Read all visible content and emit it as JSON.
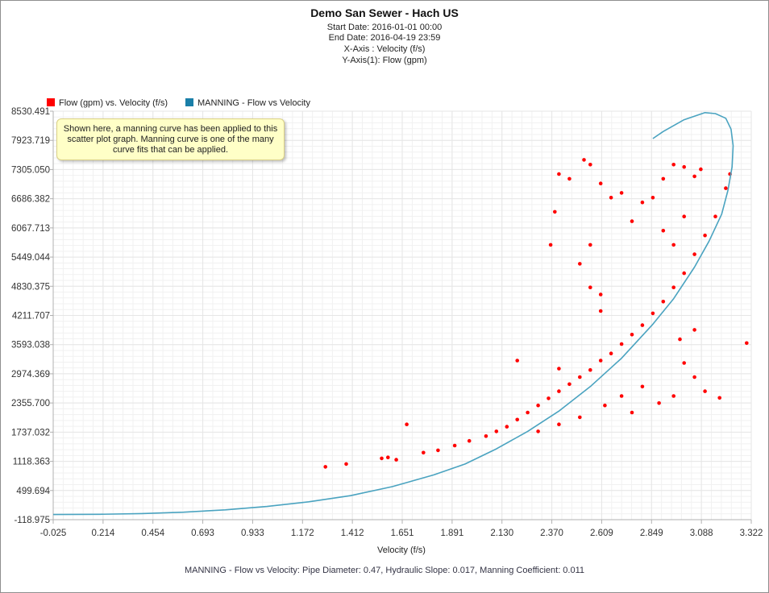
{
  "header": {
    "title": "Demo San Sewer - Hach US",
    "start_date": "Start Date: 2016-01-01 00:00",
    "end_date": "End Date: 2016-04-19 23:59",
    "x_axis_info": "X-Axis : Velocity (f/s)",
    "y_axis_info": "Y-Axis(1): Flow (gpm)"
  },
  "annotation": "Shown here, a manning curve has been applied to this scatter plot graph. Manning curve is one of the many curve fits that can be applied.",
  "footer": "MANNING - Flow vs Velocity:   Pipe Diameter: 0.47, Hydraulic Slope: 0.017, Manning Coefficient: 0.011",
  "colors": {
    "scatter": "#ff0000",
    "curve": "#4aa3c0",
    "legend_curve_swatch": "#1a7fa8",
    "grid": "#e6e6e6",
    "axis": "#b0b0b0"
  },
  "chart_data": {
    "type": "scatter",
    "xlabel": "Velocity (f/s)",
    "ylabel": "",
    "xlim": [
      -0.025,
      3.322
    ],
    "ylim": [
      -118.975,
      8530.491
    ],
    "x_ticks": [
      "-0.025",
      "0.214",
      "0.454",
      "0.693",
      "0.933",
      "1.172",
      "1.412",
      "1.651",
      "1.891",
      "2.130",
      "2.370",
      "2.609",
      "2.849",
      "3.088",
      "3.322"
    ],
    "y_ticks": [
      "8530.491",
      "7923.719",
      "7305.050",
      "6686.382",
      "6067.713",
      "5449.044",
      "4830.375",
      "4211.707",
      "3593.038",
      "2974.369",
      "2355.700",
      "1737.032",
      "1118.363",
      "499.694",
      "-118.975"
    ],
    "grid": true,
    "legend_position": "top-left",
    "series": [
      {
        "name": "Flow (gpm) vs. Velocity (f/s)",
        "kind": "scatter",
        "points": [
          [
            1.28,
            1000
          ],
          [
            1.38,
            1060
          ],
          [
            1.55,
            1180
          ],
          [
            1.58,
            1200
          ],
          [
            1.62,
            1150
          ],
          [
            1.67,
            1900
          ],
          [
            1.75,
            1300
          ],
          [
            1.82,
            1350
          ],
          [
            1.9,
            1450
          ],
          [
            1.97,
            1550
          ],
          [
            2.05,
            1650
          ],
          [
            2.1,
            1750
          ],
          [
            2.15,
            1850
          ],
          [
            2.2,
            2000
          ],
          [
            2.25,
            2150
          ],
          [
            2.3,
            2300
          ],
          [
            2.35,
            2450
          ],
          [
            2.4,
            2600
          ],
          [
            2.45,
            2750
          ],
          [
            2.5,
            2900
          ],
          [
            2.55,
            3050
          ],
          [
            2.6,
            3250
          ],
          [
            2.65,
            3400
          ],
          [
            2.7,
            3600
          ],
          [
            2.75,
            3800
          ],
          [
            2.8,
            4000
          ],
          [
            2.85,
            4250
          ],
          [
            2.9,
            4500
          ],
          [
            2.95,
            4800
          ],
          [
            3.0,
            5100
          ],
          [
            3.05,
            5500
          ],
          [
            3.1,
            5900
          ],
          [
            3.15,
            6300
          ],
          [
            3.2,
            6900
          ],
          [
            3.22,
            7200
          ],
          [
            3.3,
            3620
          ],
          [
            3.17,
            2460
          ],
          [
            3.1,
            2600
          ],
          [
            3.05,
            2900
          ],
          [
            2.95,
            2500
          ],
          [
            2.88,
            2350
          ],
          [
            2.75,
            2150
          ],
          [
            2.2,
            3250
          ],
          [
            2.4,
            3080
          ],
          [
            2.6,
            4300
          ],
          [
            2.52,
            7500
          ],
          [
            2.55,
            7400
          ],
          [
            2.6,
            7000
          ],
          [
            2.65,
            6700
          ],
          [
            2.7,
            6800
          ],
          [
            2.4,
            7200
          ],
          [
            2.45,
            7100
          ],
          [
            2.38,
            6400
          ],
          [
            2.36,
            5700
          ],
          [
            2.5,
            5300
          ],
          [
            2.55,
            5700
          ],
          [
            2.55,
            4800
          ],
          [
            2.6,
            4650
          ],
          [
            2.75,
            6200
          ],
          [
            2.8,
            6600
          ],
          [
            2.85,
            6700
          ],
          [
            2.9,
            7100
          ],
          [
            2.95,
            7400
          ],
          [
            3.0,
            7350
          ],
          [
            3.05,
            7150
          ],
          [
            3.08,
            7300
          ],
          [
            2.9,
            6000
          ],
          [
            2.95,
            5700
          ],
          [
            3.0,
            6300
          ],
          [
            3.05,
            3900
          ],
          [
            2.98,
            3700
          ],
          [
            3.0,
            3200
          ],
          [
            2.8,
            2700
          ],
          [
            2.7,
            2500
          ],
          [
            2.62,
            2300
          ],
          [
            2.5,
            2050
          ],
          [
            2.4,
            1900
          ],
          [
            2.3,
            1750
          ]
        ]
      },
      {
        "name": "MANNING - Flow vs Velocity",
        "kind": "line",
        "points": [
          [
            -0.025,
            -10
          ],
          [
            0.2,
            -5
          ],
          [
            0.4,
            10
          ],
          [
            0.6,
            40
          ],
          [
            0.8,
            90
          ],
          [
            1.0,
            160
          ],
          [
            1.2,
            260
          ],
          [
            1.4,
            390
          ],
          [
            1.6,
            580
          ],
          [
            1.8,
            830
          ],
          [
            1.95,
            1060
          ],
          [
            2.1,
            1380
          ],
          [
            2.25,
            1750
          ],
          [
            2.4,
            2180
          ],
          [
            2.55,
            2700
          ],
          [
            2.7,
            3300
          ],
          [
            2.85,
            4020
          ],
          [
            2.95,
            4560
          ],
          [
            3.05,
            5230
          ],
          [
            3.12,
            5780
          ],
          [
            3.18,
            6350
          ],
          [
            3.21,
            6850
          ],
          [
            3.23,
            7350
          ],
          [
            3.235,
            7800
          ],
          [
            3.225,
            8150
          ],
          [
            3.2,
            8380
          ],
          [
            3.15,
            8480
          ],
          [
            3.1,
            8500
          ],
          [
            3.0,
            8350
          ],
          [
            2.9,
            8100
          ],
          [
            2.85,
            7950
          ]
        ]
      }
    ]
  }
}
